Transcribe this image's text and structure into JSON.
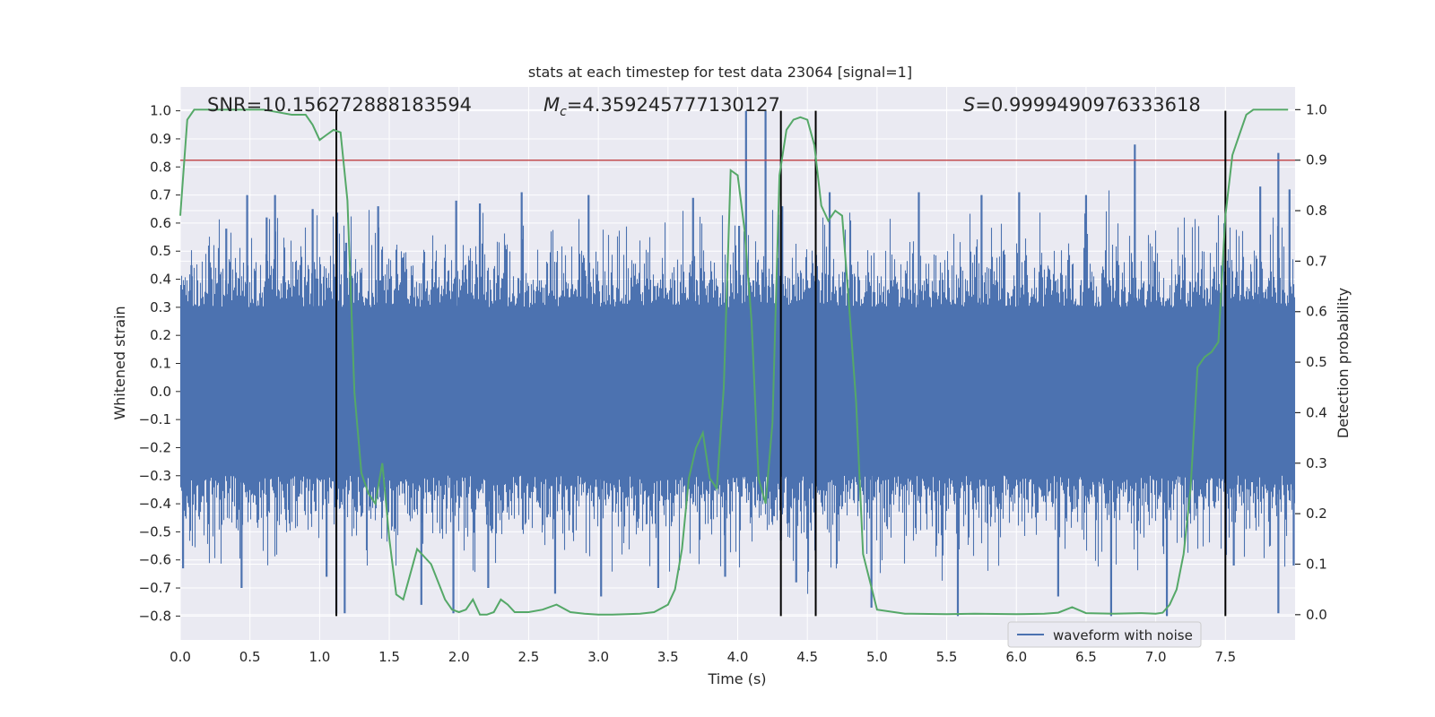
{
  "chart_data": {
    "type": "line",
    "title": "stats at each timestep for test data 23064 [signal=1]",
    "xlabel": "Time (s)",
    "ylabel_left": "Whitened strain",
    "ylabel_right": "Detection probability",
    "xlim": [
      0,
      8.0
    ],
    "ylim_left": [
      -0.885,
      1.085
    ],
    "ylim_right": [
      -0.05,
      1.045
    ],
    "x_ticks": [
      "0.0",
      "0.5",
      "1.0",
      "1.5",
      "2.0",
      "2.5",
      "3.0",
      "3.5",
      "4.0",
      "4.5",
      "5.0",
      "5.5",
      "6.0",
      "6.5",
      "7.0",
      "7.5"
    ],
    "x_tick_values": [
      0,
      0.5,
      1.0,
      1.5,
      2.0,
      2.5,
      3.0,
      3.5,
      4.0,
      4.5,
      5.0,
      5.5,
      6.0,
      6.5,
      7.0,
      7.5
    ],
    "y_ticks_left": [
      "1.0",
      "0.9",
      "0.8",
      "0.7",
      "0.6",
      "0.5",
      "0.4",
      "0.3",
      "0.2",
      "0.1",
      "0.0",
      "−0.1",
      "−0.2",
      "−0.3",
      "−0.4",
      "−0.5",
      "−0.6",
      "−0.7",
      "−0.8"
    ],
    "y_tick_values_left": [
      1.0,
      0.9,
      0.8,
      0.7,
      0.6,
      0.5,
      0.4,
      0.3,
      0.2,
      0.1,
      0.0,
      -0.1,
      -0.2,
      -0.3,
      -0.4,
      -0.5,
      -0.6,
      -0.7,
      -0.8
    ],
    "y_ticks_right": [
      "1.0",
      "0.9",
      "0.8",
      "0.7",
      "0.6",
      "0.5",
      "0.4",
      "0.3",
      "0.2",
      "0.1",
      "0.0"
    ],
    "y_tick_values_right": [
      1.0,
      0.9,
      0.8,
      0.7,
      0.6,
      0.5,
      0.4,
      0.3,
      0.2,
      0.1,
      0.0
    ],
    "grid": true,
    "legend": {
      "position": "lower-right",
      "entries": [
        "waveform with noise"
      ]
    },
    "annotations": {
      "snr": "SNR=10.156272888183594",
      "mc_symbol": "M",
      "mc_subscript": "c",
      "mc_value": "=4.359245777130127",
      "s_symbol": "S",
      "s_value": "=0.9999490976333618"
    },
    "threshold": {
      "axis": "right",
      "value": 0.9,
      "color": "#c44e52"
    },
    "vertical_lines": {
      "x": [
        1.12,
        4.31,
        4.56,
        7.5
      ],
      "y_range_left": [
        -0.8,
        1.0
      ],
      "color": "#000000"
    },
    "series": [
      {
        "name": "waveform with noise",
        "axis": "left",
        "color": "#4c72b0",
        "style": "dense_noise",
        "envelope_typical": [
          -0.45,
          0.45
        ],
        "peaks": [
          {
            "x": 0.08,
            "y": 0.45
          },
          {
            "x": 0.33,
            "y": 0.58
          },
          {
            "x": 0.48,
            "y": 0.7
          },
          {
            "x": 0.62,
            "y": 0.62
          },
          {
            "x": 0.68,
            "y": 0.7
          },
          {
            "x": 0.95,
            "y": 0.65
          },
          {
            "x": 1.19,
            "y": 0.53
          },
          {
            "x": 1.42,
            "y": 0.66
          },
          {
            "x": 1.98,
            "y": 0.68
          },
          {
            "x": 2.15,
            "y": 0.67
          },
          {
            "x": 2.45,
            "y": 0.71
          },
          {
            "x": 2.93,
            "y": 0.7
          },
          {
            "x": 3.68,
            "y": 0.69
          },
          {
            "x": 4.01,
            "y": 0.59
          },
          {
            "x": 4.06,
            "y": 1.0
          },
          {
            "x": 4.2,
            "y": 1.0
          },
          {
            "x": 4.32,
            "y": 0.66
          },
          {
            "x": 4.66,
            "y": 0.71
          },
          {
            "x": 5.3,
            "y": 0.71
          },
          {
            "x": 5.75,
            "y": 0.7
          },
          {
            "x": 6.02,
            "y": 0.71
          },
          {
            "x": 6.5,
            "y": 0.7
          },
          {
            "x": 6.85,
            "y": 0.88
          },
          {
            "x": 7.75,
            "y": 0.73
          },
          {
            "x": 7.88,
            "y": 0.85
          },
          {
            "x": 7.96,
            "y": 0.72
          }
        ],
        "troughs": [
          {
            "x": 0.02,
            "y": -0.63
          },
          {
            "x": 0.44,
            "y": -0.7
          },
          {
            "x": 1.05,
            "y": -0.66
          },
          {
            "x": 1.12,
            "y": -0.79
          },
          {
            "x": 1.18,
            "y": -0.79
          },
          {
            "x": 1.73,
            "y": -0.76
          },
          {
            "x": 1.96,
            "y": -0.79
          },
          {
            "x": 2.21,
            "y": -0.7
          },
          {
            "x": 2.69,
            "y": -0.72
          },
          {
            "x": 3.02,
            "y": -0.73
          },
          {
            "x": 3.43,
            "y": -0.7
          },
          {
            "x": 3.91,
            "y": -0.66
          },
          {
            "x": 4.31,
            "y": -0.53
          },
          {
            "x": 4.42,
            "y": -0.68
          },
          {
            "x": 4.96,
            "y": -0.77
          },
          {
            "x": 5.58,
            "y": -0.8
          },
          {
            "x": 6.3,
            "y": -0.73
          },
          {
            "x": 6.68,
            "y": -0.8
          },
          {
            "x": 7.08,
            "y": -0.8
          },
          {
            "x": 7.56,
            "y": -0.62
          },
          {
            "x": 7.88,
            "y": -0.79
          },
          {
            "x": 7.99,
            "y": -0.62
          }
        ]
      },
      {
        "name": "",
        "axis": "right",
        "color": "#55a868",
        "x": [
          0.0,
          0.05,
          0.1,
          0.2,
          0.3,
          0.4,
          0.5,
          0.6,
          0.7,
          0.8,
          0.9,
          0.95,
          1.0,
          1.05,
          1.1,
          1.15,
          1.2,
          1.25,
          1.3,
          1.35,
          1.4,
          1.45,
          1.5,
          1.55,
          1.6,
          1.65,
          1.7,
          1.8,
          1.9,
          1.95,
          2.0,
          2.05,
          2.1,
          2.15,
          2.2,
          2.25,
          2.3,
          2.35,
          2.4,
          2.5,
          2.6,
          2.7,
          2.8,
          2.9,
          3.0,
          3.1,
          3.2,
          3.3,
          3.4,
          3.5,
          3.55,
          3.6,
          3.65,
          3.7,
          3.75,
          3.8,
          3.85,
          3.9,
          3.95,
          4.0,
          4.05,
          4.1,
          4.15,
          4.2,
          4.25,
          4.3,
          4.35,
          4.4,
          4.45,
          4.5,
          4.55,
          4.6,
          4.65,
          4.7,
          4.75,
          4.8,
          4.85,
          4.9,
          5.0,
          5.2,
          5.5,
          5.7,
          6.0,
          6.2,
          6.3,
          6.4,
          6.5,
          6.7,
          6.9,
          7.0,
          7.05,
          7.1,
          7.15,
          7.2,
          7.25,
          7.3,
          7.35,
          7.4,
          7.45,
          7.5,
          7.55,
          7.6,
          7.65,
          7.7,
          7.8,
          7.9,
          7.95
        ],
        "y": [
          0.79,
          0.98,
          1.0,
          1.0,
          1.0,
          1.0,
          1.0,
          1.0,
          0.995,
          0.99,
          0.99,
          0.97,
          0.94,
          0.95,
          0.96,
          0.955,
          0.82,
          0.44,
          0.28,
          0.24,
          0.22,
          0.3,
          0.15,
          0.04,
          0.03,
          0.08,
          0.13,
          0.1,
          0.03,
          0.01,
          0.005,
          0.01,
          0.03,
          0.0,
          0.0,
          0.005,
          0.03,
          0.02,
          0.005,
          0.005,
          0.01,
          0.02,
          0.005,
          0.002,
          0.0,
          0.0,
          0.001,
          0.002,
          0.005,
          0.02,
          0.05,
          0.13,
          0.27,
          0.33,
          0.36,
          0.27,
          0.25,
          0.45,
          0.88,
          0.87,
          0.76,
          0.58,
          0.27,
          0.22,
          0.38,
          0.87,
          0.96,
          0.98,
          0.985,
          0.98,
          0.93,
          0.81,
          0.78,
          0.8,
          0.79,
          0.61,
          0.42,
          0.12,
          0.01,
          0.002,
          0.001,
          0.002,
          0.001,
          0.002,
          0.004,
          0.015,
          0.003,
          0.002,
          0.003,
          0.002,
          0.004,
          0.02,
          0.05,
          0.12,
          0.25,
          0.49,
          0.51,
          0.52,
          0.54,
          0.79,
          0.91,
          0.95,
          0.99,
          1.0,
          1.0,
          1.0,
          1.0
        ]
      }
    ]
  }
}
